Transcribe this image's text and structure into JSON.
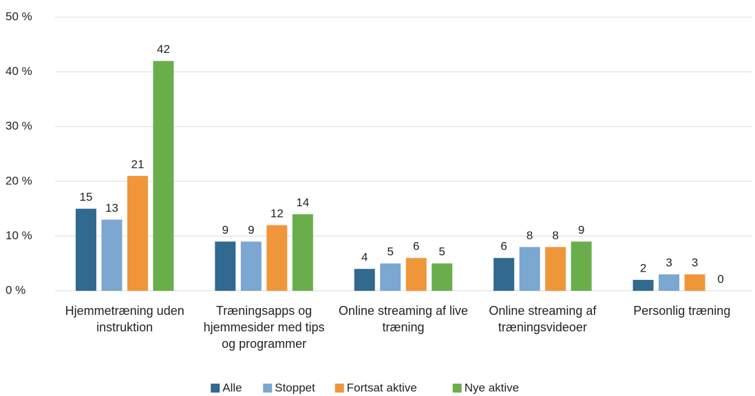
{
  "chart_data": {
    "type": "bar",
    "categories": [
      "Hjemmetræning uden instruktion",
      "Træningsapps og hjemmesider med tips og programmer",
      "Online streaming af live træning",
      "Online streaming af træningsvideoer",
      "Personlig træning"
    ],
    "series": [
      {
        "name": "Alle",
        "color": "#31698f",
        "values": [
          15,
          9,
          4,
          6,
          2
        ]
      },
      {
        "name": "Stoppet",
        "color": "#7ba7d1",
        "values": [
          13,
          9,
          5,
          8,
          3
        ]
      },
      {
        "name": "Fortsat aktive",
        "color": "#f0963a",
        "values": [
          21,
          12,
          6,
          8,
          3
        ]
      },
      {
        "name": "Nye aktive",
        "color": "#6aae4c",
        "values": [
          42,
          14,
          5,
          9,
          0
        ]
      }
    ],
    "ylim": [
      0,
      50
    ],
    "yticks": [
      {
        "value": 0,
        "label": "0 %"
      },
      {
        "value": 10,
        "label": "10 %"
      },
      {
        "value": 20,
        "label": "20 %"
      },
      {
        "value": 30,
        "label": "30 %"
      },
      {
        "value": 40,
        "label": "40 %"
      },
      {
        "value": 50,
        "label": "50 %"
      }
    ],
    "grid": true,
    "legend": "bottom"
  }
}
